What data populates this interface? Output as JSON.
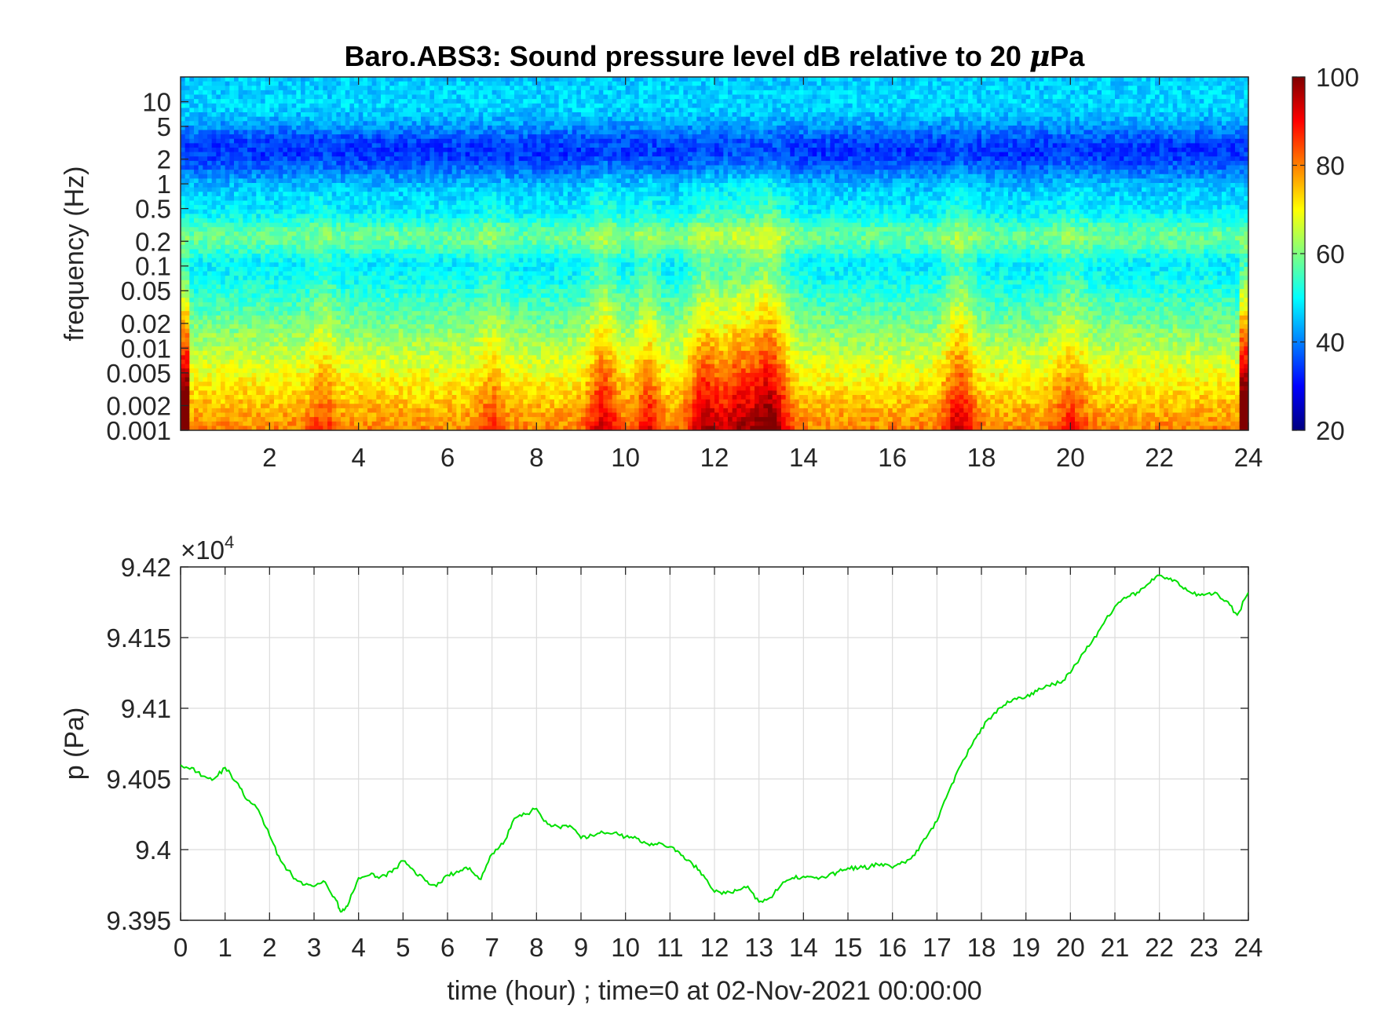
{
  "chart_data": [
    {
      "type": "heatmap",
      "title": "Baro.ABS3: Sound pressure level dB relative to 20 μPa",
      "title_main": "Baro.ABS3: Sound pressure level dB relative to 20 ",
      "title_mu": "μ",
      "title_unit": "Pa",
      "xlabel": "",
      "ylabel": "frequency (Hz)",
      "x_scale": "linear",
      "y_scale": "log",
      "xlim": [
        0,
        24
      ],
      "ylim": [
        0.001,
        20
      ],
      "x_ticks": [
        "2",
        "4",
        "6",
        "8",
        "10",
        "12",
        "14",
        "16",
        "18",
        "20",
        "22",
        "24"
      ],
      "y_ticks": [
        "0.001",
        "0.002",
        "0.005",
        "0.01",
        "0.02",
        "0.05",
        "0.1",
        "0.2",
        "0.5",
        "1",
        "2",
        "5",
        "10"
      ],
      "colormap": "jet",
      "colorbar": {
        "clim": [
          20,
          100
        ],
        "ticks": [
          "20",
          "40",
          "60",
          "80",
          "100"
        ],
        "location": "right"
      },
      "features": [
        {
          "desc": "high level band at lowest frequencies",
          "f_range": [
            0.001,
            0.003
          ],
          "level_db": 90
        },
        {
          "desc": "secondary peak band",
          "f_range": [
            0.15,
            0.3
          ],
          "level_db": 60
        },
        {
          "desc": "quiet band",
          "f_range": [
            1,
            5
          ],
          "level_db": 40
        },
        {
          "desc": "broadband bursts",
          "t_hours": [
            9.5,
            10.5,
            11.8,
            12.5,
            13.2,
            17.5
          ],
          "level_db": 75
        }
      ]
    },
    {
      "type": "line",
      "title": "",
      "xlabel": "time (hour) ; time=0 at 02-Nov-2021 00:00:00",
      "ylabel": "p (Pa)",
      "xlim": [
        0,
        24
      ],
      "ylim": [
        93950,
        94200
      ],
      "y_multiplier": "×10",
      "y_multiplier_exp": "4",
      "x_ticks": [
        "0",
        "1",
        "2",
        "3",
        "4",
        "5",
        "6",
        "7",
        "8",
        "9",
        "10",
        "11",
        "12",
        "13",
        "14",
        "15",
        "16",
        "17",
        "18",
        "19",
        "20",
        "21",
        "22",
        "23",
        "24"
      ],
      "y_ticks": [
        "9.395",
        "9.4",
        "9.405",
        "9.41",
        "9.415",
        "9.42"
      ],
      "grid": true,
      "series": [
        {
          "color": "#00e000",
          "x": [
            0,
            0.25,
            0.5,
            0.75,
            1.0,
            1.25,
            1.5,
            1.75,
            2.0,
            2.25,
            2.5,
            2.75,
            3.0,
            3.25,
            3.5,
            3.6,
            3.75,
            4.0,
            4.25,
            4.5,
            4.75,
            5.0,
            5.25,
            5.5,
            5.75,
            6.0,
            6.25,
            6.5,
            6.75,
            7.0,
            7.25,
            7.5,
            7.75,
            8.0,
            8.25,
            8.5,
            8.75,
            9.0,
            9.25,
            9.5,
            9.75,
            10.0,
            10.25,
            10.5,
            10.75,
            11.0,
            11.25,
            11.5,
            11.75,
            12.0,
            12.25,
            12.5,
            12.75,
            13.0,
            13.25,
            13.5,
            13.75,
            14.0,
            14.25,
            14.5,
            14.75,
            15.0,
            15.25,
            15.5,
            15.75,
            16.0,
            16.25,
            16.5,
            16.75,
            17.0,
            17.25,
            17.5,
            17.75,
            18.0,
            18.25,
            18.5,
            18.75,
            19.0,
            19.25,
            19.5,
            19.75,
            20.0,
            20.25,
            20.5,
            20.75,
            21.0,
            21.25,
            21.5,
            21.75,
            22.0,
            22.25,
            22.5,
            22.75,
            23.0,
            23.25,
            23.5,
            23.75,
            24.0
          ],
          "y": [
            94060,
            94058,
            94052,
            94050,
            94058,
            94048,
            94035,
            94028,
            94010,
            93992,
            93982,
            93975,
            93974,
            93977,
            93964,
            93956,
            93960,
            93980,
            93982,
            93981,
            93984,
            93992,
            93985,
            93978,
            93974,
            93982,
            93984,
            93987,
            93979,
            93997,
            94004,
            94022,
            94025,
            94029,
            94018,
            94016,
            94017,
            94008,
            94010,
            94012,
            94012,
            94009,
            94008,
            94004,
            94005,
            94002,
            93996,
            93990,
            93982,
            93970,
            93969,
            93971,
            93974,
            93963,
            93966,
            93975,
            93980,
            93981,
            93980,
            93980,
            93984,
            93987,
            93987,
            93988,
            93990,
            93987,
            93991,
            93996,
            94008,
            94020,
            94040,
            94058,
            94072,
            94086,
            94095,
            94102,
            94107,
            94108,
            94112,
            94116,
            94118,
            94125,
            94138,
            94148,
            94160,
            94172,
            94178,
            94182,
            94188,
            94194,
            94192,
            94186,
            94181,
            94180,
            94182,
            94176,
            94166,
            94182
          ]
        }
      ]
    }
  ]
}
